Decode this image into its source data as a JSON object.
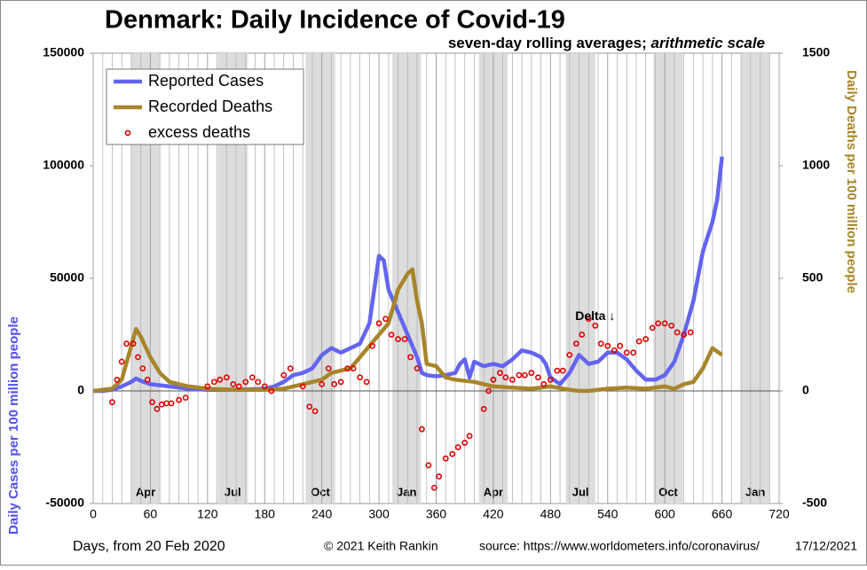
{
  "chart_data": {
    "type": "line",
    "title": "Denmark: Daily Incidence of Covid-19",
    "subtitle": "seven-day rolling averages;",
    "subtitle_italic": "arithmetic scale",
    "xlabel": "Days, from 20 Feb 2020",
    "ylabel": "Daily Cases per 100 million people",
    "y2label": "Daily Deaths per 100 million people",
    "xlim": [
      0,
      720
    ],
    "xticks": [
      0,
      60,
      120,
      180,
      240,
      300,
      360,
      420,
      480,
      540,
      600,
      660,
      720
    ],
    "ylim": [
      -50000,
      150000
    ],
    "yticks": [
      -50000,
      0,
      50000,
      100000,
      150000
    ],
    "y2lim": [
      -500,
      1500
    ],
    "y2ticks": [
      -500,
      0,
      500,
      1000,
      1500
    ],
    "grid": true,
    "legend": "upper left",
    "month_bands": [
      {
        "label": "Apr",
        "start": 40,
        "end": 70
      },
      {
        "label": "Jul",
        "start": 131,
        "end": 162
      },
      {
        "label": "Oct",
        "start": 223,
        "end": 254
      },
      {
        "label": "Jan",
        "start": 314,
        "end": 344
      },
      {
        "label": "Apr",
        "start": 405,
        "end": 435
      },
      {
        "label": "Jul",
        "start": 496,
        "end": 527
      },
      {
        "label": "Oct",
        "start": 588,
        "end": 619
      },
      {
        "label": "Jan",
        "start": 680,
        "end": 710
      }
    ],
    "annotation": {
      "text": "Delta ↓",
      "x": 527,
      "y": 33000
    },
    "series": [
      {
        "name": "Reported Cases",
        "color": "#6464f0",
        "axis": "y",
        "x": [
          0,
          10,
          20,
          30,
          40,
          45,
          50,
          60,
          80,
          100,
          120,
          140,
          160,
          180,
          190,
          200,
          210,
          220,
          230,
          240,
          250,
          260,
          270,
          280,
          290,
          295,
          300,
          305,
          310,
          320,
          330,
          340,
          345,
          350,
          360,
          370,
          380,
          385,
          390,
          395,
          400,
          410,
          420,
          430,
          440,
          450,
          460,
          470,
          475,
          480,
          490,
          500,
          510,
          520,
          530,
          540,
          550,
          560,
          570,
          580,
          590,
          600,
          610,
          620,
          630,
          640,
          650,
          655,
          660
        ],
        "values": [
          0,
          0,
          500,
          2000,
          4000,
          5500,
          4500,
          3000,
          2000,
          1000,
          500,
          500,
          700,
          1000,
          2000,
          4000,
          7000,
          8000,
          10000,
          16000,
          19000,
          17000,
          19000,
          21000,
          30000,
          45000,
          60000,
          58000,
          45000,
          35000,
          25000,
          15000,
          8000,
          7000,
          6500,
          7000,
          8000,
          12000,
          14000,
          6000,
          13000,
          11000,
          12000,
          11000,
          14000,
          18000,
          17000,
          15000,
          12000,
          6000,
          3000,
          8000,
          16000,
          12000,
          13000,
          17000,
          17000,
          14000,
          9000,
          5000,
          5000,
          7000,
          13000,
          25000,
          40000,
          62000,
          75000,
          85000,
          104000
        ]
      },
      {
        "name": "Recorded Deaths",
        "color": "#a8852a",
        "axis": "y2",
        "x": [
          0,
          20,
          30,
          40,
          45,
          50,
          60,
          70,
          80,
          100,
          120,
          150,
          180,
          200,
          220,
          240,
          250,
          260,
          270,
          280,
          290,
          300,
          310,
          320,
          330,
          335,
          340,
          345,
          350,
          360,
          370,
          380,
          400,
          420,
          440,
          460,
          480,
          500,
          510,
          520,
          540,
          560,
          580,
          600,
          610,
          620,
          630,
          640,
          650,
          660
        ],
        "values": [
          0,
          10,
          50,
          200,
          275,
          240,
          150,
          80,
          40,
          20,
          10,
          5,
          5,
          10,
          30,
          50,
          80,
          90,
          100,
          150,
          200,
          250,
          300,
          450,
          520,
          540,
          400,
          300,
          120,
          110,
          60,
          50,
          40,
          20,
          15,
          10,
          20,
          5,
          0,
          0,
          10,
          15,
          10,
          20,
          10,
          30,
          40,
          100,
          190,
          160
        ]
      },
      {
        "name": "excess deaths",
        "color": "#e00000",
        "axis": "y2",
        "type": "scatter",
        "x": [
          20,
          25,
          30,
          35,
          42,
          47,
          52,
          57,
          62,
          67,
          72,
          77,
          82,
          90,
          97,
          120,
          127,
          133,
          140,
          147,
          153,
          160,
          167,
          173,
          180,
          187,
          200,
          207,
          220,
          227,
          233,
          240,
          247,
          253,
          260,
          267,
          273,
          280,
          287,
          293,
          300,
          307,
          313,
          320,
          327,
          333,
          340,
          345,
          352,
          358,
          363,
          370,
          377,
          383,
          390,
          395,
          410,
          415,
          420,
          427,
          433,
          440,
          447,
          453,
          460,
          467,
          473,
          480,
          487,
          493,
          500,
          507,
          513,
          520,
          527,
          533,
          540,
          547,
          553,
          560,
          567,
          573,
          580,
          587,
          593,
          600,
          607,
          613,
          620,
          627
        ],
        "values": [
          -50,
          50,
          130,
          210,
          210,
          150,
          100,
          50,
          -50,
          -80,
          -60,
          -55,
          -55,
          -40,
          -30,
          20,
          40,
          50,
          60,
          30,
          20,
          40,
          60,
          40,
          20,
          0,
          70,
          100,
          20,
          -70,
          -90,
          30,
          100,
          30,
          40,
          100,
          100,
          60,
          40,
          200,
          300,
          320,
          250,
          230,
          230,
          150,
          100,
          -170,
          -330,
          -430,
          -380,
          -300,
          -280,
          -250,
          -230,
          -200,
          -80,
          0,
          50,
          80,
          60,
          50,
          70,
          70,
          80,
          60,
          30,
          50,
          90,
          90,
          160,
          210,
          250,
          320,
          290,
          210,
          200,
          180,
          200,
          170,
          170,
          220,
          230,
          280,
          300,
          300,
          290,
          260,
          250,
          260
        ]
      }
    ],
    "footer": {
      "copyright": "© 2021  Keith Rankin",
      "source": "source:  https://www.worldometers.info/coronavirus/",
      "date": "17/12/2021"
    }
  }
}
